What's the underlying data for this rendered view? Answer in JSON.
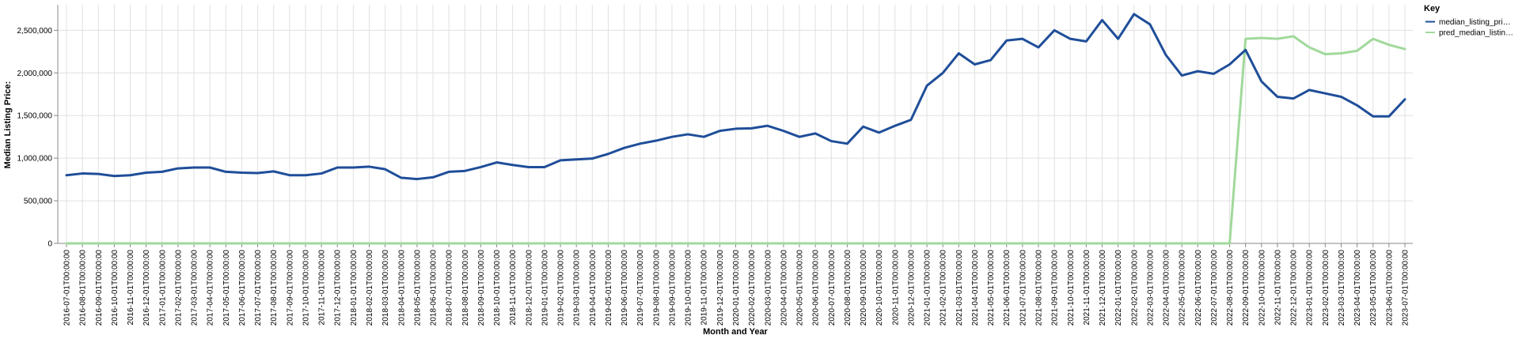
{
  "chart_data": {
    "type": "line",
    "xlabel": "Month and Year",
    "ylabel": "Median Listing Price:",
    "ylim": [
      0,
      2800000
    ],
    "y_ticks": [
      0,
      500000,
      1000000,
      1500000,
      2000000,
      2500000
    ],
    "y_tick_labels": [
      "0",
      "500,000",
      "1,000,000",
      "1,500,000",
      "2,000,000",
      "2,500,000"
    ],
    "grid": true,
    "legend": {
      "title": "Key",
      "placement": "top-right"
    },
    "x": [
      "2016-07-01T00:00:00",
      "2016-08-01T00:00:00",
      "2016-09-01T00:00:00",
      "2016-10-01T00:00:00",
      "2016-11-01T00:00:00",
      "2016-12-01T00:00:00",
      "2017-01-01T00:00:00",
      "2017-02-01T00:00:00",
      "2017-03-01T00:00:00",
      "2017-04-01T00:00:00",
      "2017-05-01T00:00:00",
      "2017-06-01T00:00:00",
      "2017-07-01T00:00:00",
      "2017-08-01T00:00:00",
      "2017-09-01T00:00:00",
      "2017-10-01T00:00:00",
      "2017-11-01T00:00:00",
      "2017-12-01T00:00:00",
      "2018-01-01T00:00:00",
      "2018-02-01T00:00:00",
      "2018-03-01T00:00:00",
      "2018-04-01T00:00:00",
      "2018-05-01T00:00:00",
      "2018-06-01T00:00:00",
      "2018-07-01T00:00:00",
      "2018-08-01T00:00:00",
      "2018-09-01T00:00:00",
      "2018-10-01T00:00:00",
      "2018-11-01T00:00:00",
      "2018-12-01T00:00:00",
      "2019-01-01T00:00:00",
      "2019-02-01T00:00:00",
      "2019-03-01T00:00:00",
      "2019-04-01T00:00:00",
      "2019-05-01T00:00:00",
      "2019-06-01T00:00:00",
      "2019-07-01T00:00:00",
      "2019-08-01T00:00:00",
      "2019-09-01T00:00:00",
      "2019-10-01T00:00:00",
      "2019-11-01T00:00:00",
      "2019-12-01T00:00:00",
      "2020-01-01T00:00:00",
      "2020-02-01T00:00:00",
      "2020-03-01T00:00:00",
      "2020-04-01T00:00:00",
      "2020-05-01T00:00:00",
      "2020-06-01T00:00:00",
      "2020-07-01T00:00:00",
      "2020-08-01T00:00:00",
      "2020-09-01T00:00:00",
      "2020-10-01T00:00:00",
      "2020-11-01T00:00:00",
      "2020-12-01T00:00:00",
      "2021-01-01T00:00:00",
      "2021-02-01T00:00:00",
      "2021-03-01T00:00:00",
      "2021-04-01T00:00:00",
      "2021-05-01T00:00:00",
      "2021-06-01T00:00:00",
      "2021-07-01T00:00:00",
      "2021-08-01T00:00:00",
      "2021-09-01T00:00:00",
      "2021-10-01T00:00:00",
      "2021-11-01T00:00:00",
      "2021-12-01T00:00:00",
      "2022-01-01T00:00:00",
      "2022-02-01T00:00:00",
      "2022-03-01T00:00:00",
      "2022-04-01T00:00:00",
      "2022-05-01T00:00:00",
      "2022-06-01T00:00:00",
      "2022-07-01T00:00:00",
      "2022-08-01T00:00:00",
      "2022-09-01T00:00:00",
      "2022-10-01T00:00:00",
      "2022-11-01T00:00:00",
      "2022-12-01T00:00:00",
      "2023-01-01T00:00:00",
      "2023-02-01T00:00:00",
      "2023-03-01T00:00:00",
      "2023-04-01T00:00:00",
      "2023-05-01T00:00:00",
      "2023-06-01T00:00:00",
      "2023-07-01T00:00:00"
    ],
    "series": [
      {
        "name": "median_listing_pri…",
        "color": "#1f4e99",
        "values": [
          800000,
          820000,
          815000,
          790000,
          800000,
          830000,
          840000,
          880000,
          890000,
          890000,
          840000,
          830000,
          825000,
          845000,
          800000,
          800000,
          820000,
          890000,
          890000,
          900000,
          870000,
          770000,
          755000,
          775000,
          840000,
          850000,
          895000,
          950000,
          920000,
          895000,
          895000,
          975000,
          985000,
          995000,
          1050000,
          1120000,
          1170000,
          1205000,
          1250000,
          1280000,
          1250000,
          1320000,
          1345000,
          1350000,
          1380000,
          1320000,
          1250000,
          1290000,
          1200000,
          1170000,
          1370000,
          1300000,
          1380000,
          1450000,
          1850000,
          2000000,
          2230000,
          2100000,
          2150000,
          2380000,
          2400000,
          2300000,
          2500000,
          2400000,
          2370000,
          2620000,
          2400000,
          2690000,
          2570000,
          2210000,
          1970000,
          2020000,
          1990000,
          2100000,
          2270000,
          1900000,
          1720000,
          1700000,
          1800000,
          1760000,
          1720000,
          1620000,
          1490000,
          1490000,
          1690000
        ]
      },
      {
        "name": "pred_median_listin…",
        "color": "#a1d99b",
        "values": [
          0,
          0,
          0,
          0,
          0,
          0,
          0,
          0,
          0,
          0,
          0,
          0,
          0,
          0,
          0,
          0,
          0,
          0,
          0,
          0,
          0,
          0,
          0,
          0,
          0,
          0,
          0,
          0,
          0,
          0,
          0,
          0,
          0,
          0,
          0,
          0,
          0,
          0,
          0,
          0,
          0,
          0,
          0,
          0,
          0,
          0,
          0,
          0,
          0,
          0,
          0,
          0,
          0,
          0,
          0,
          0,
          0,
          0,
          0,
          0,
          0,
          0,
          0,
          0,
          0,
          0,
          0,
          0,
          0,
          0,
          0,
          0,
          0,
          0,
          2400000,
          2410000,
          2400000,
          2430000,
          2300000,
          2220000,
          2230000,
          2260000,
          2400000,
          2330000,
          2280000
        ]
      }
    ]
  }
}
